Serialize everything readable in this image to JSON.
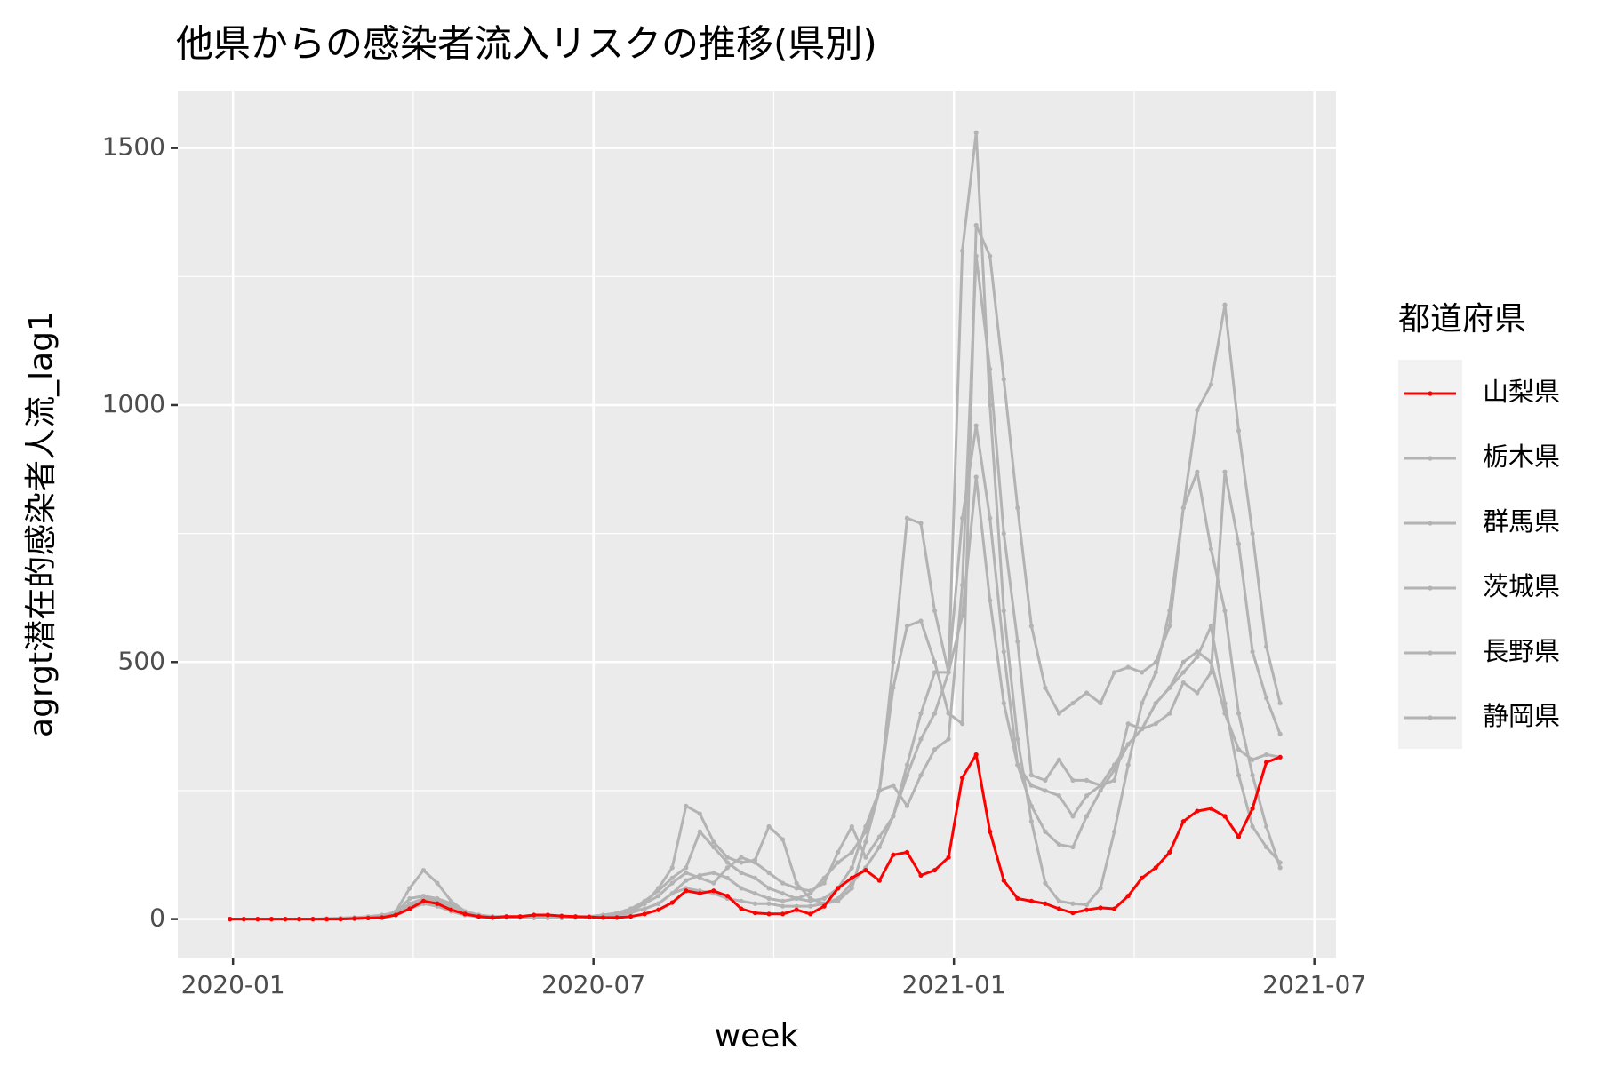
{
  "chart_data": {
    "type": "line",
    "title": "他県からの感染者流入リスクの推移(県別)",
    "x_label": "week",
    "y_label": "agrgt潜在的感染者人流_lag1",
    "legend_title": "都道府県",
    "legend_position": "right",
    "x": [
      -0.05,
      0.18,
      0.41,
      0.64,
      0.87,
      1.1,
      1.33,
      1.56,
      1.79,
      2.02,
      2.25,
      2.48,
      2.71,
      2.94,
      3.17,
      3.4,
      3.63,
      3.86,
      4.09,
      4.32,
      4.55,
      4.78,
      5.01,
      5.24,
      5.47,
      5.7,
      5.93,
      6.16,
      6.39,
      6.62,
      6.85,
      7.08,
      7.31,
      7.54,
      7.77,
      8,
      8.23,
      8.46,
      8.69,
      8.92,
      9.15,
      9.38,
      9.61,
      9.84,
      10.07,
      10.3,
      10.53,
      10.76,
      10.99,
      11.22,
      11.45,
      11.68,
      11.91,
      12.14,
      12.37,
      12.6,
      12.83,
      13.06,
      13.29,
      13.52,
      13.75,
      13.98,
      14.21,
      14.44,
      14.67,
      14.9,
      15.13,
      15.36,
      15.59,
      15.82,
      16.05,
      16.28,
      16.51,
      16.74,
      16.97,
      17.2,
      17.43
    ],
    "xlim": [
      -0.92,
      18.36
    ],
    "xticks": [
      {
        "value": 0,
        "label": "2020-01"
      },
      {
        "value": 6,
        "label": "2020-07"
      },
      {
        "value": 12,
        "label": "2021-01"
      },
      {
        "value": 18,
        "label": "2021-07"
      }
    ],
    "xminor": [
      3,
      9,
      15
    ],
    "ylim": [
      -75,
      1610
    ],
    "yticks": [
      0,
      500,
      1000,
      1500
    ],
    "yminor": [
      250,
      750,
      1250
    ],
    "grid": true,
    "series": [
      {
        "name": "山梨県",
        "color": "#ff0000",
        "values": [
          0,
          0,
          0,
          0,
          0,
          0,
          0,
          0,
          0,
          1,
          2,
          3,
          8,
          20,
          35,
          30,
          18,
          10,
          5,
          3,
          5,
          5,
          8,
          8,
          6,
          5,
          4,
          3,
          3,
          5,
          10,
          18,
          32,
          55,
          50,
          55,
          45,
          20,
          12,
          10,
          10,
          18,
          10,
          25,
          60,
          80,
          95,
          75,
          125,
          130,
          85,
          95,
          120,
          275,
          320,
          170,
          75,
          40,
          35,
          30,
          20,
          12,
          18,
          22,
          20,
          45,
          80,
          100,
          130,
          190,
          210,
          215,
          200,
          160,
          215,
          305,
          315
        ]
      },
      {
        "name": "栃木県",
        "color": "#b3b3b3",
        "values": [
          0,
          0,
          0,
          0,
          0,
          0,
          0,
          0,
          1,
          2,
          3,
          5,
          15,
          60,
          95,
          70,
          35,
          15,
          8,
          5,
          5,
          4,
          3,
          3,
          3,
          3,
          4,
          5,
          8,
          15,
          30,
          60,
          100,
          220,
          205,
          150,
          120,
          110,
          115,
          180,
          155,
          70,
          40,
          30,
          35,
          60,
          150,
          250,
          500,
          780,
          770,
          600,
          480,
          1300,
          1530,
          1000,
          600,
          350,
          190,
          70,
          35,
          30,
          28,
          60,
          170,
          300,
          420,
          480,
          600,
          800,
          870,
          720,
          600,
          400,
          280,
          180,
          100
        ]
      },
      {
        "name": "群馬県",
        "color": "#b3b3b3",
        "values": [
          0,
          0,
          0,
          0,
          0,
          0,
          0,
          1,
          2,
          3,
          5,
          8,
          12,
          40,
          45,
          40,
          30,
          15,
          8,
          5,
          4,
          4,
          3,
          3,
          3,
          4,
          5,
          8,
          10,
          15,
          20,
          30,
          50,
          75,
          85,
          90,
          80,
          60,
          50,
          40,
          35,
          40,
          50,
          80,
          110,
          130,
          170,
          250,
          450,
          570,
          580,
          500,
          400,
          380,
          1350,
          1290,
          1050,
          800,
          570,
          450,
          400,
          420,
          440,
          420,
          480,
          490,
          480,
          500,
          570,
          800,
          990,
          1040,
          1195,
          950,
          750,
          530,
          420
        ]
      },
      {
        "name": "茨城県",
        "color": "#b3b3b3",
        "values": [
          0,
          0,
          0,
          0,
          0,
          0,
          0,
          0,
          0,
          1,
          2,
          4,
          10,
          30,
          40,
          35,
          25,
          12,
          6,
          4,
          4,
          3,
          3,
          3,
          3,
          4,
          5,
          8,
          12,
          20,
          35,
          55,
          80,
          100,
          170,
          140,
          110,
          90,
          80,
          60,
          50,
          40,
          35,
          40,
          60,
          100,
          180,
          250,
          260,
          220,
          280,
          330,
          350,
          650,
          1290,
          1070,
          750,
          540,
          280,
          270,
          310,
          270,
          270,
          260,
          270,
          380,
          370,
          380,
          400,
          460,
          440,
          480,
          870,
          730,
          520,
          430,
          360
        ]
      },
      {
        "name": "長野県",
        "color": "#b3b3b3",
        "values": [
          0,
          0,
          0,
          0,
          0,
          0,
          0,
          0,
          0,
          1,
          2,
          3,
          10,
          25,
          35,
          30,
          20,
          10,
          5,
          4,
          4,
          3,
          3,
          3,
          3,
          3,
          4,
          6,
          10,
          20,
          30,
          45,
          70,
          90,
          80,
          70,
          100,
          120,
          110,
          90,
          70,
          60,
          55,
          70,
          130,
          180,
          120,
          160,
          200,
          280,
          350,
          400,
          480,
          780,
          960,
          780,
          520,
          300,
          220,
          170,
          145,
          140,
          200,
          250,
          290,
          340,
          370,
          420,
          450,
          480,
          510,
          570,
          420,
          280,
          180,
          140,
          110
        ]
      },
      {
        "name": "静岡県",
        "color": "#b3b3b3",
        "values": [
          0,
          0,
          0,
          0,
          0,
          0,
          0,
          0,
          0,
          1,
          2,
          3,
          8,
          20,
          30,
          25,
          15,
          8,
          4,
          3,
          3,
          3,
          2,
          2,
          2,
          3,
          4,
          5,
          8,
          12,
          20,
          30,
          50,
          60,
          55,
          50,
          40,
          35,
          30,
          30,
          25,
          25,
          25,
          30,
          40,
          70,
          100,
          140,
          200,
          300,
          400,
          480,
          480,
          590,
          860,
          620,
          420,
          300,
          260,
          250,
          240,
          200,
          240,
          260,
          300,
          340,
          370,
          420,
          450,
          500,
          520,
          500,
          400,
          330,
          310,
          320,
          315
        ]
      }
    ]
  }
}
